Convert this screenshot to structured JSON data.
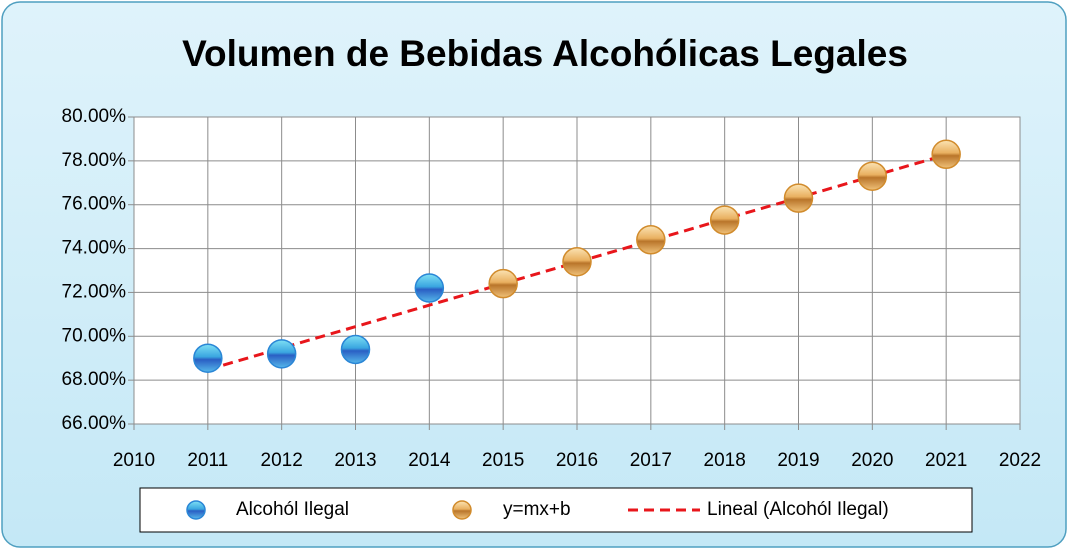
{
  "chart_data": {
    "type": "scatter",
    "title": "Volumen de Bebidas Alcohólicas Legales",
    "xlim": [
      2010,
      2022
    ],
    "xticks": [
      2010,
      2011,
      2012,
      2013,
      2014,
      2015,
      2016,
      2017,
      2018,
      2019,
      2020,
      2021,
      2022
    ],
    "ylim": [
      66,
      80
    ],
    "yticks": [
      {
        "value": 66,
        "label": "66.00%"
      },
      {
        "value": 68,
        "label": "68.00%"
      },
      {
        "value": 70,
        "label": "70.00%"
      },
      {
        "value": 72,
        "label": "72.00%"
      },
      {
        "value": 74,
        "label": "74.00%"
      },
      {
        "value": 76,
        "label": "76.00%"
      },
      {
        "value": 78,
        "label": "78.00%"
      },
      {
        "value": 80,
        "label": "80.00%"
      }
    ],
    "grid": true,
    "legend": "bottom",
    "series": [
      {
        "name": "Alcohól Ilegal",
        "style": "marker",
        "color": "#2a86d6",
        "x": [
          2011,
          2012,
          2013,
          2014
        ],
        "values": [
          69.0,
          69.2,
          69.4,
          72.2
        ]
      },
      {
        "name": "y=mx+b",
        "style": "marker",
        "color": "#d18b2c",
        "x": [
          2015,
          2016,
          2017,
          2018,
          2019,
          2020,
          2021
        ],
        "values": [
          72.4,
          73.4,
          74.4,
          75.3,
          76.3,
          77.3,
          78.3
        ]
      },
      {
        "name": "Lineal (Alcohól Ilegal)",
        "style": "dashed-line",
        "color": "#e8161b",
        "x": [
          2011,
          2021
        ],
        "values": [
          68.48,
          78.28
        ]
      }
    ]
  }
}
